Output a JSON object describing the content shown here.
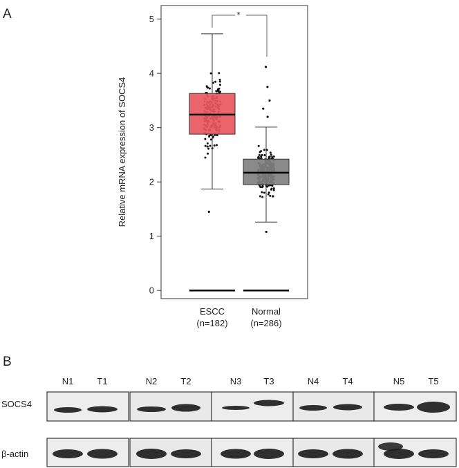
{
  "panel_a": {
    "letter": "A"
  },
  "panel_b": {
    "letter": "B",
    "row_labels": [
      "SOCS4",
      "β-actin"
    ],
    "groups": [
      {
        "normal": "N1",
        "tumor": "T1"
      },
      {
        "normal": "N2",
        "tumor": "T2"
      },
      {
        "normal": "N3",
        "tumor": "T3"
      },
      {
        "normal": "N4",
        "tumor": "T4"
      },
      {
        "normal": "N5",
        "tumor": "T5"
      }
    ]
  },
  "chart_data": {
    "type": "box",
    "title": "",
    "xlabel": "",
    "ylabel": "Relative mRNA expression of SOCS4",
    "ylim": [
      -0.15,
      5.25
    ],
    "yticks": [
      0,
      1,
      2,
      3,
      4,
      5
    ],
    "grid": false,
    "significance": {
      "between": [
        "ESCC",
        "Normal"
      ],
      "label": "*"
    },
    "categories": [
      {
        "name": "ESCC",
        "n_label": "(n=182)",
        "color": "#e8575e",
        "whisker_low": 1.87,
        "q1": 2.88,
        "median": 3.24,
        "q3": 3.63,
        "whisker_high": 4.73,
        "outliers": [
          1.45
        ]
      },
      {
        "name": "Normal",
        "n_label": "(n=286)",
        "color": "#808080",
        "whisker_low": 1.26,
        "q1": 1.95,
        "median": 2.17,
        "q3": 2.42,
        "whisker_high": 3.01,
        "outliers": [
          1.08,
          3.2,
          3.35,
          3.5,
          3.75,
          4.12
        ]
      }
    ],
    "zero_values": {
      "ESCC": 0,
      "Normal": 0
    }
  }
}
